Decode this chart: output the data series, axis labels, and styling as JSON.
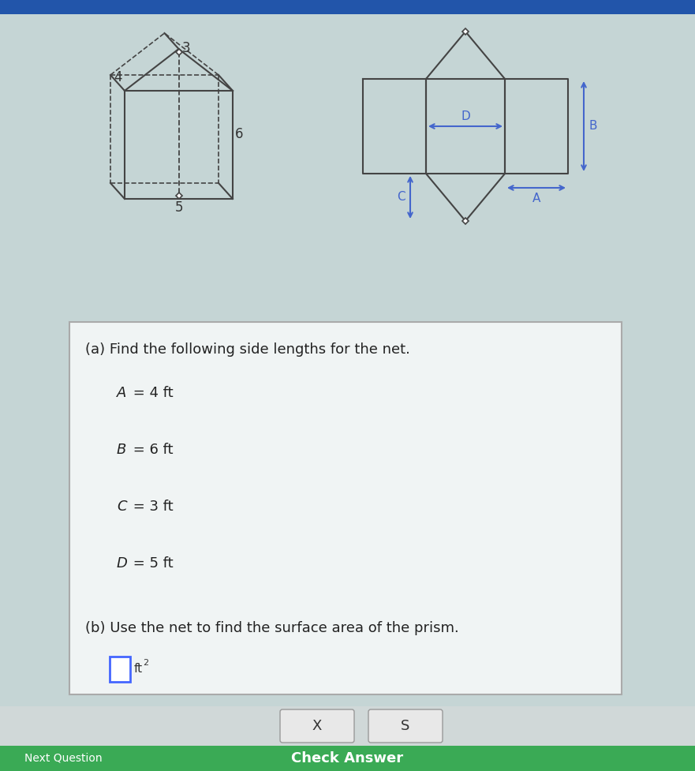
{
  "bg_color": "#c5d5d5",
  "prism_color": "#444444",
  "net_color": "#444444",
  "dim_color": "#4466cc",
  "qa_title": "(a) Find the following side lengths for the net.",
  "answers": [
    "A = 4 ft",
    "B = 6 ft",
    "C = 3 ft",
    "D = 5 ft"
  ],
  "qb_title": "(b) Use the net to find the surface area of the prism.",
  "box_color": "#f0f4f4",
  "box_border": "#aaaaaa",
  "btn_x_label": "X",
  "btn_s_label": "S",
  "check_answer_label": "Check Answer",
  "next_question_label": "Next Question",
  "input_color": "#4466ff"
}
